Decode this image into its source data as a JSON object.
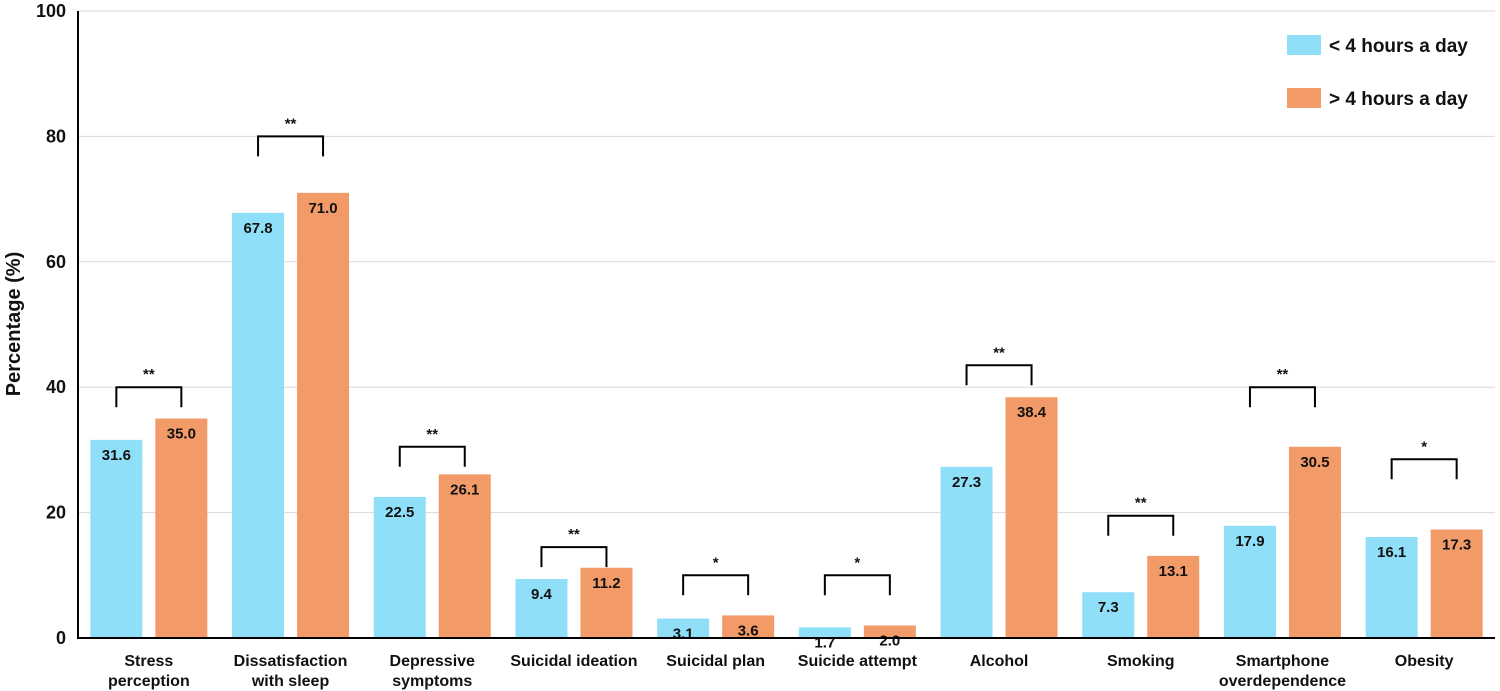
{
  "chart_data": {
    "type": "bar",
    "title": "",
    "ylabel": "Percentage (%)",
    "xlabel": "",
    "ylim": [
      0,
      100
    ],
    "yticks": [
      0,
      20,
      40,
      60,
      80,
      100
    ],
    "grid": "horizontal",
    "legend_position": "top-right",
    "categories": [
      [
        "Stress",
        "perception"
      ],
      [
        "Dissatisfaction",
        "with sleep"
      ],
      [
        "Depressive",
        "symptoms"
      ],
      [
        "Suicidal ideation"
      ],
      [
        "Suicidal plan"
      ],
      [
        "Suicide attempt"
      ],
      [
        "Alcohol"
      ],
      [
        "Smoking"
      ],
      [
        "Smartphone",
        "overdependence"
      ],
      [
        "Obesity"
      ]
    ],
    "series": [
      {
        "name": "< 4 hours a day",
        "color": "#8fdff8",
        "values": [
          31.6,
          67.8,
          22.5,
          9.4,
          3.1,
          1.7,
          27.3,
          7.3,
          17.9,
          16.1
        ],
        "labels": [
          "31.6",
          "67.8",
          "22.5",
          "9.4",
          "3.1",
          "1.7",
          "27.3",
          "7.3",
          "17.9",
          "16.1"
        ]
      },
      {
        "name": "> 4 hours a day",
        "color": "#f29a68",
        "values": [
          35.0,
          71.0,
          26.1,
          11.2,
          3.6,
          2.0,
          38.4,
          13.1,
          30.5,
          17.3
        ],
        "labels": [
          "35.0",
          "71.0",
          "26.1",
          "11.2",
          "3.6",
          "2.0",
          "38.4",
          "13.1",
          "30.5",
          "17.3"
        ]
      }
    ],
    "significance": [
      {
        "category": 0,
        "mark": "**",
        "bracket_y": 40
      },
      {
        "category": 1,
        "mark": "**",
        "bracket_y": 80
      },
      {
        "category": 2,
        "mark": "**",
        "bracket_y": 30.5
      },
      {
        "category": 3,
        "mark": "**",
        "bracket_y": 14.5
      },
      {
        "category": 4,
        "mark": "*",
        "bracket_y": 10
      },
      {
        "category": 5,
        "mark": "*",
        "bracket_y": 10
      },
      {
        "category": 6,
        "mark": "**",
        "bracket_y": 43.5
      },
      {
        "category": 7,
        "mark": "**",
        "bracket_y": 19.5
      },
      {
        "category": 8,
        "mark": "**",
        "bracket_y": 40
      },
      {
        "category": 9,
        "mark": "*",
        "bracket_y": 28.5
      }
    ]
  }
}
